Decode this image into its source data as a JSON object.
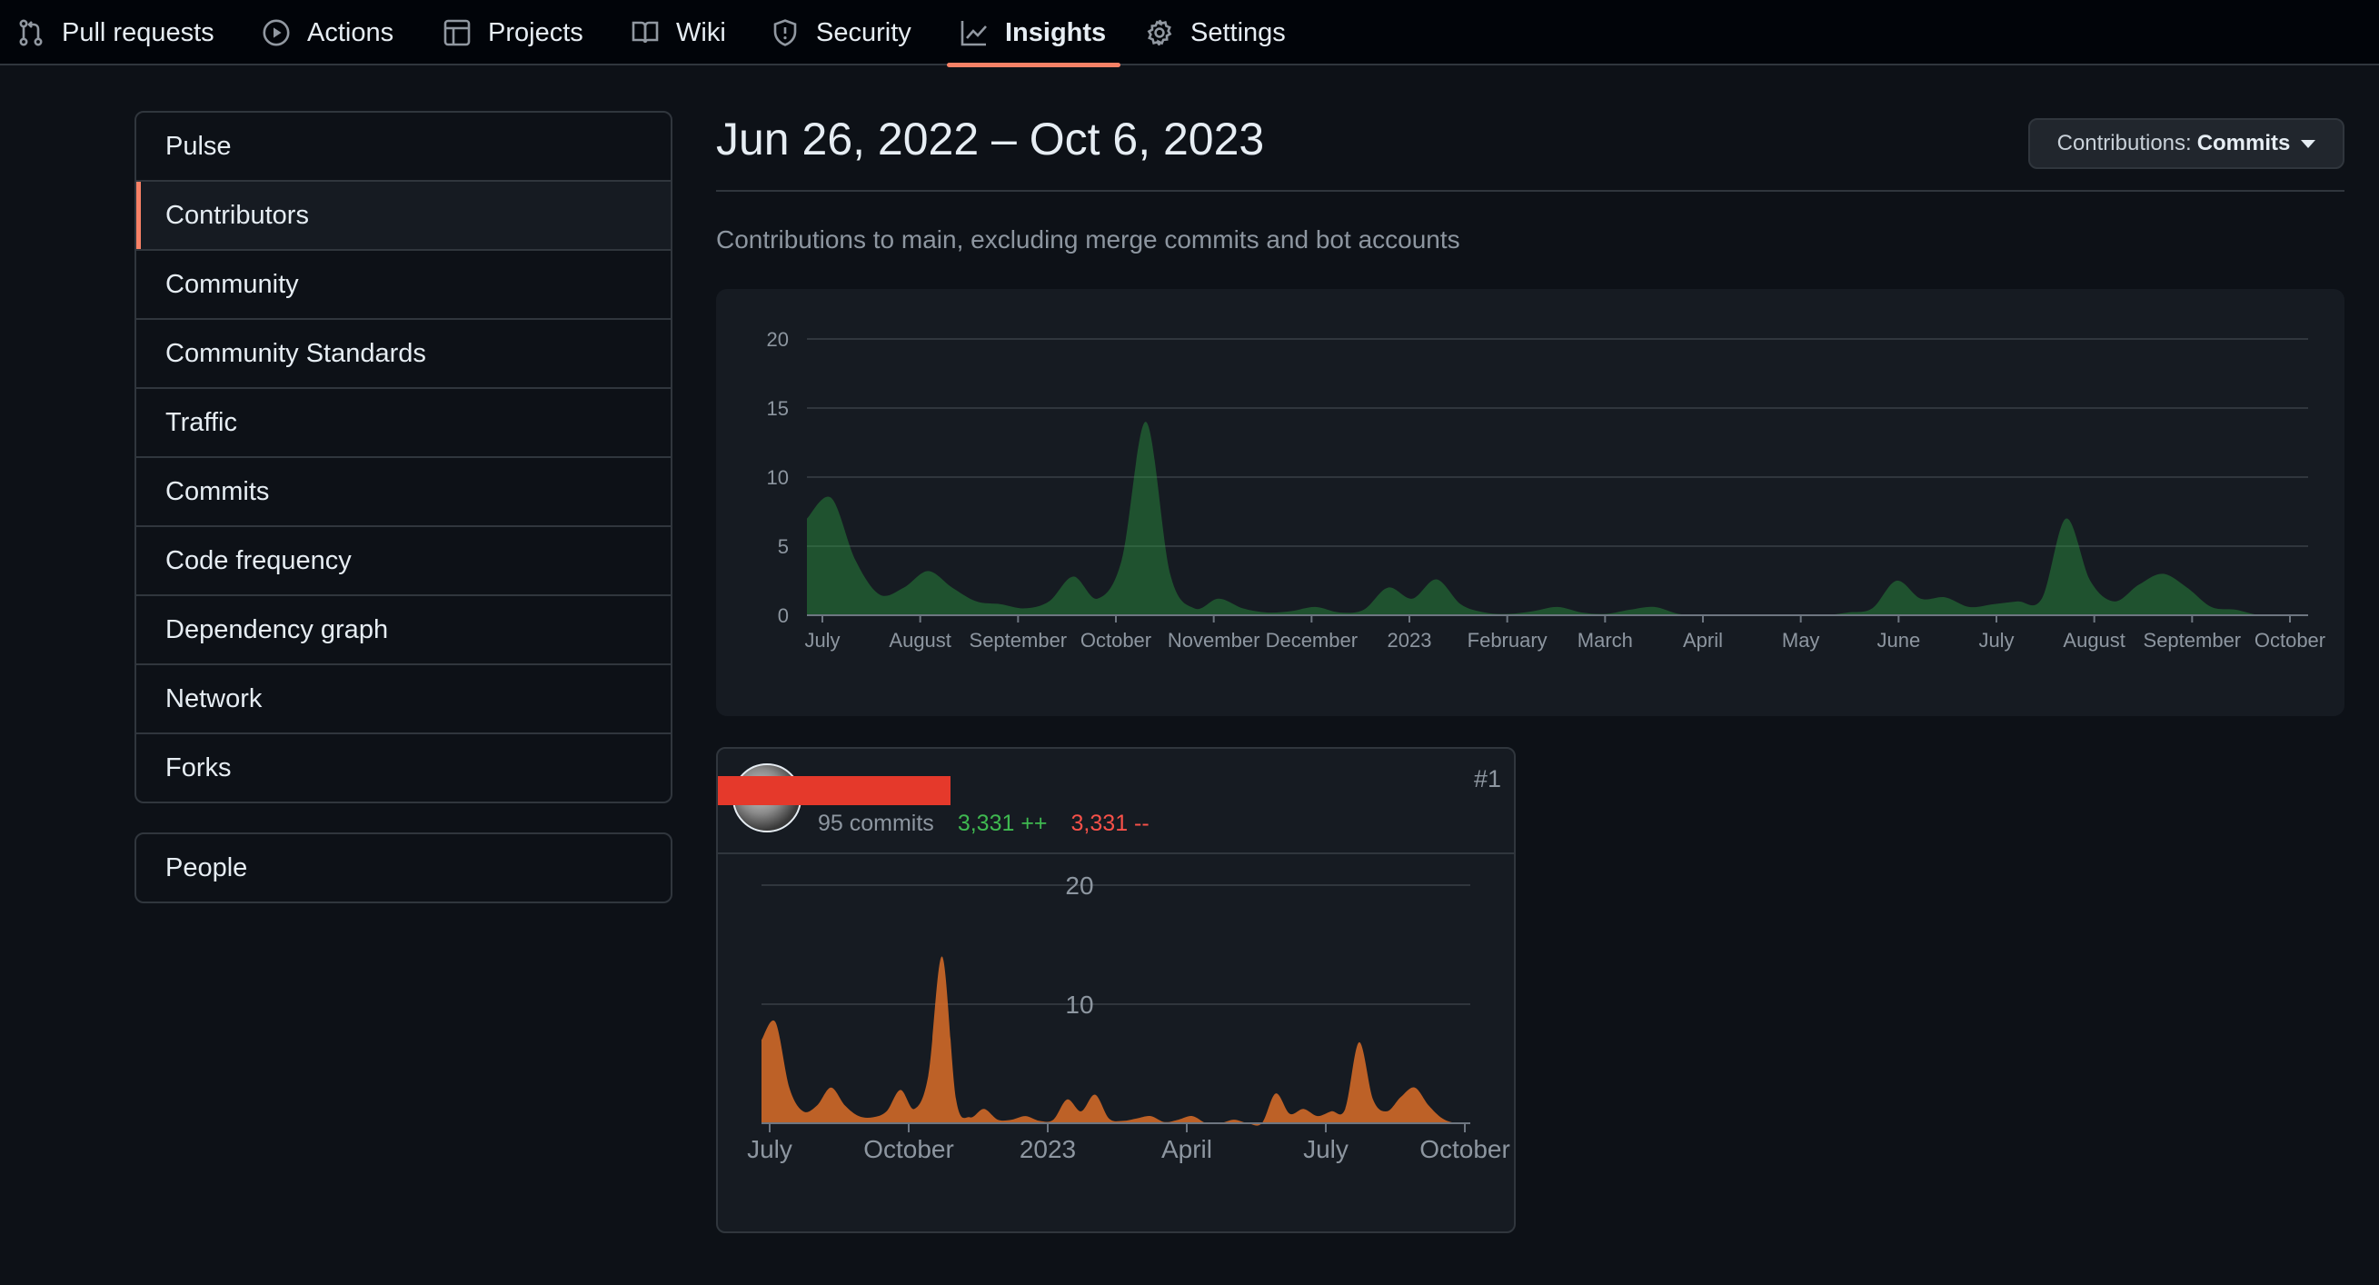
{
  "nav": {
    "tabs": [
      {
        "label": "Pull requests",
        "icon": "pull-request-icon"
      },
      {
        "label": "Actions",
        "icon": "play-icon"
      },
      {
        "label": "Projects",
        "icon": "table-icon"
      },
      {
        "label": "Wiki",
        "icon": "book-icon"
      },
      {
        "label": "Security",
        "icon": "shield-icon"
      },
      {
        "label": "Insights",
        "icon": "graph-icon",
        "active": true
      },
      {
        "label": "Settings",
        "icon": "gear-icon"
      }
    ],
    "accent": "#f78166"
  },
  "sidebar": {
    "items": [
      {
        "label": "Pulse"
      },
      {
        "label": "Contributors",
        "selected": true
      },
      {
        "label": "Community"
      },
      {
        "label": "Community Standards"
      },
      {
        "label": "Traffic"
      },
      {
        "label": "Commits"
      },
      {
        "label": "Code frequency"
      },
      {
        "label": "Dependency graph"
      },
      {
        "label": "Network"
      },
      {
        "label": "Forks"
      }
    ],
    "people_label": "People"
  },
  "main": {
    "range_title": "Jun 26, 2022 – Oct 6, 2023",
    "contrib_button": {
      "prefix": "Contributions:",
      "value": "Commits"
    },
    "subtitle": "Contributions to main, excluding merge commits and bot accounts"
  },
  "contributor": {
    "commits": "95 commits",
    "additions": "3,331 ++",
    "deletions": "3,331 --",
    "rank": "#1"
  },
  "chart_data": [
    {
      "type": "area",
      "color": "#2ea043",
      "ylim": [
        0,
        20
      ],
      "yticks": [
        "20",
        "15",
        "10",
        "5",
        "0"
      ],
      "grid": true,
      "x_labels": [
        "July",
        "August",
        "September",
        "October",
        "November",
        "December",
        "2023",
        "February",
        "March",
        "April",
        "May",
        "June",
        "July",
        "August",
        "September",
        "October"
      ],
      "series": [
        {
          "values": [
            7,
            8.5,
            4,
            1.5,
            2,
            3.2,
            2,
            1,
            0.8,
            0.5,
            1,
            2.8,
            1.2,
            4,
            14,
            3,
            0.5,
            1.2,
            0.5,
            0.2,
            0.3,
            0.6,
            0.2,
            0.4,
            2,
            1.2,
            2.6,
            0.8,
            0.2,
            0.1,
            0.3,
            0.6,
            0.2,
            0.1,
            0.4,
            0.6,
            0.1,
            0,
            0,
            0,
            0,
            0,
            0,
            0.2,
            0.5,
            2.5,
            1.2,
            1.3,
            0.6,
            0.8,
            1,
            1.2,
            7,
            2.5,
            1,
            2.2,
            3,
            2,
            0.6,
            0.4,
            0,
            0,
            0
          ]
        }
      ]
    },
    {
      "type": "area",
      "color": "#db6d28",
      "ylim": [
        0,
        20
      ],
      "yticks": [
        "20",
        "10"
      ],
      "grid": true,
      "x_labels": [
        "July",
        "October",
        "2023",
        "April",
        "July",
        "October"
      ],
      "series": [
        {
          "values": [
            7,
            8.5,
            3,
            1,
            1.5,
            3,
            1.5,
            0.6,
            0.5,
            1,
            2.8,
            1.2,
            4,
            14,
            2,
            0.5,
            1.2,
            0.3,
            0.3,
            0.6,
            0.2,
            0.3,
            2,
            1,
            2.4,
            0.4,
            0.2,
            0.4,
            0.6,
            0.1,
            0.3,
            0.6,
            0,
            0,
            0.3,
            0,
            0,
            2.5,
            0.8,
            1.2,
            0.6,
            1,
            1.2,
            6.8,
            2,
            1,
            2.2,
            3,
            1.5,
            0.4,
            0,
            0
          ]
        }
      ]
    }
  ]
}
